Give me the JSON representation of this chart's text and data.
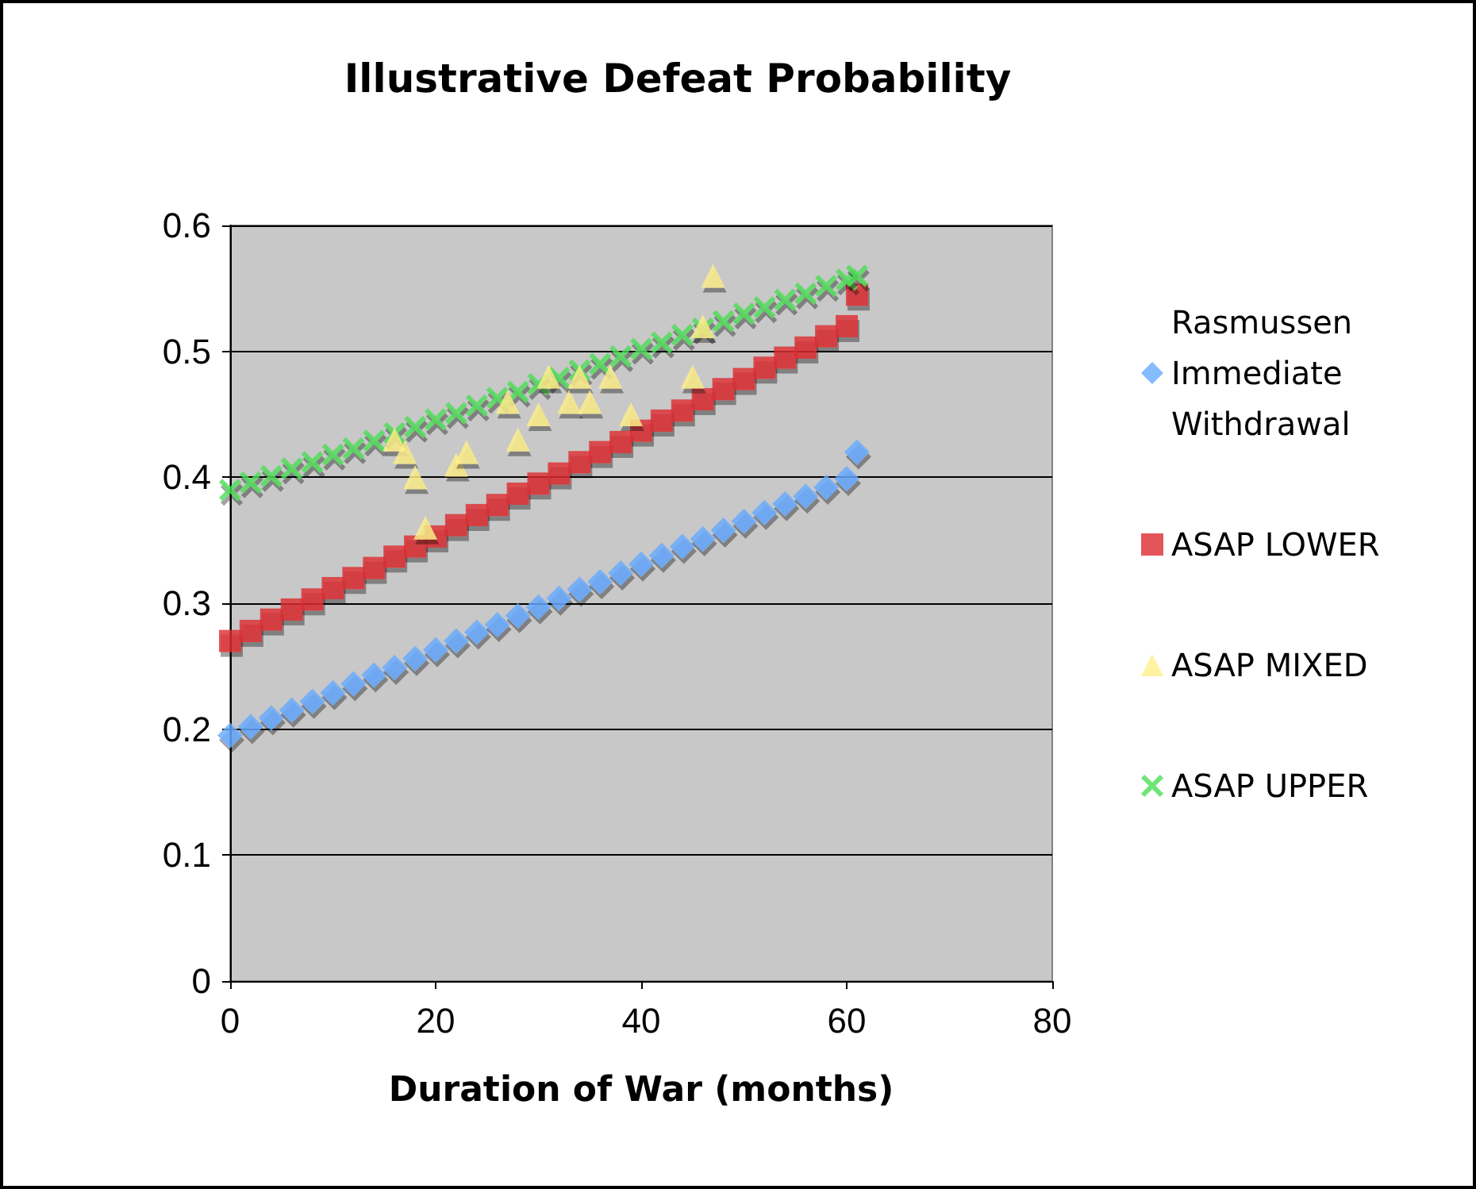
{
  "chart_data": {
    "type": "scatter",
    "title": "Illustrative Defeat Probability",
    "xlabel": "Duration of War (months)",
    "xlim": [
      0,
      80
    ],
    "xticks": [
      0,
      20,
      40,
      60,
      80
    ],
    "ylim": [
      0,
      0.6
    ],
    "yticks": [
      0,
      0.1,
      0.2,
      0.3,
      0.4,
      0.5,
      0.6
    ],
    "grid": "y",
    "legend": "right",
    "series": [
      {
        "name": "Rasmussen\nImmediate\nWithdrawal",
        "color": "#66aaff",
        "marker": "diamond",
        "x": [
          0,
          2,
          4,
          6,
          8,
          10,
          12,
          14,
          16,
          18,
          20,
          22,
          24,
          26,
          28,
          30,
          32,
          34,
          36,
          38,
          40,
          42,
          44,
          46,
          48,
          50,
          52,
          54,
          56,
          58,
          60,
          61
        ],
        "values": [
          0.195,
          0.202,
          0.209,
          0.215,
          0.222,
          0.229,
          0.236,
          0.243,
          0.249,
          0.256,
          0.263,
          0.27,
          0.277,
          0.283,
          0.29,
          0.297,
          0.304,
          0.311,
          0.317,
          0.324,
          0.331,
          0.338,
          0.345,
          0.351,
          0.358,
          0.365,
          0.372,
          0.379,
          0.385,
          0.392,
          0.399,
          0.42
        ]
      },
      {
        "name": "ASAP LOWER",
        "color": "#dd2a30",
        "marker": "square",
        "x": [
          0,
          2,
          4,
          6,
          8,
          10,
          12,
          14,
          16,
          18,
          20,
          22,
          24,
          26,
          28,
          30,
          32,
          34,
          36,
          38,
          40,
          42,
          44,
          46,
          48,
          50,
          52,
          54,
          56,
          58,
          60,
          61
        ],
        "values": [
          0.27,
          0.278,
          0.287,
          0.295,
          0.303,
          0.312,
          0.32,
          0.328,
          0.337,
          0.345,
          0.353,
          0.362,
          0.37,
          0.378,
          0.387,
          0.395,
          0.403,
          0.412,
          0.42,
          0.428,
          0.437,
          0.445,
          0.453,
          0.462,
          0.47,
          0.478,
          0.487,
          0.495,
          0.503,
          0.512,
          0.52,
          0.545
        ]
      },
      {
        "name": "ASAP MIXED",
        "color": "#fff08a",
        "marker": "triangle",
        "x": [
          16,
          17,
          18,
          19,
          22,
          23,
          27,
          28,
          30,
          31,
          33,
          34,
          35,
          37,
          39,
          45,
          46,
          47
        ],
        "values": [
          0.43,
          0.42,
          0.4,
          0.36,
          0.41,
          0.42,
          0.46,
          0.43,
          0.45,
          0.48,
          0.46,
          0.48,
          0.46,
          0.48,
          0.45,
          0.48,
          0.52,
          0.56
        ]
      },
      {
        "name": "ASAP UPPER",
        "color": "#4cdd55",
        "marker": "cross",
        "x": [
          0,
          2,
          4,
          6,
          8,
          10,
          12,
          14,
          16,
          18,
          20,
          22,
          24,
          26,
          28,
          30,
          32,
          34,
          36,
          38,
          40,
          42,
          44,
          46,
          48,
          50,
          52,
          54,
          56,
          58,
          60,
          61
        ],
        "values": [
          0.39,
          0.396,
          0.401,
          0.407,
          0.412,
          0.418,
          0.423,
          0.429,
          0.435,
          0.44,
          0.446,
          0.451,
          0.457,
          0.463,
          0.468,
          0.474,
          0.479,
          0.485,
          0.49,
          0.496,
          0.502,
          0.507,
          0.513,
          0.518,
          0.524,
          0.53,
          0.535,
          0.541,
          0.546,
          0.552,
          0.557,
          0.56
        ]
      }
    ]
  }
}
